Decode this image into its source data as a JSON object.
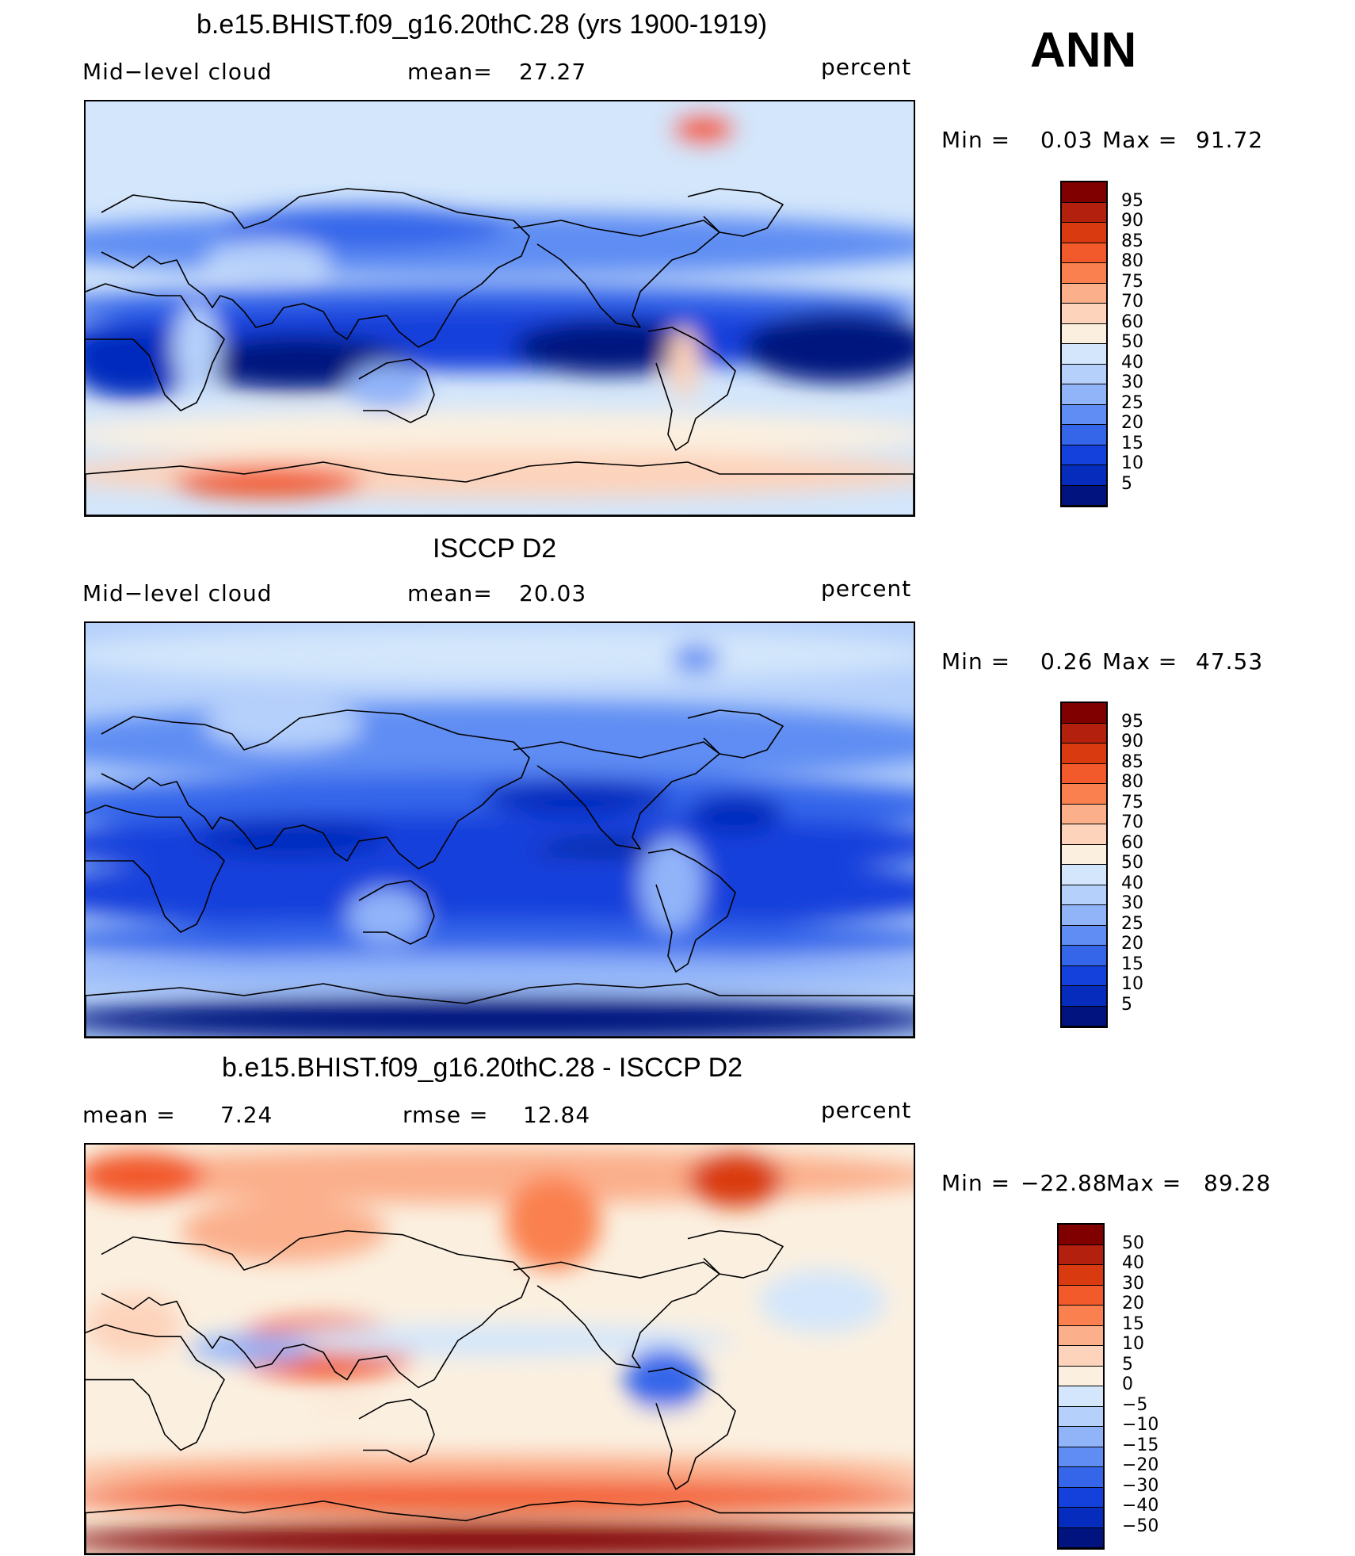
{
  "season": "ANN",
  "units": "percent",
  "panels": [
    {
      "title": "b.e15.BHIST.f09_g16.20thC.28 (yrs 1900-1919)",
      "left_text": "Mid−level cloud",
      "mid_key": "mean=",
      "mid_val": "27.27",
      "right_text": "percent",
      "min_label": "Min  =",
      "min_val": "0.03",
      "max_label": "Max  =",
      "max_val": "91.72",
      "scale": "abs",
      "field": "model",
      "colorbar": {
        "colors": [
          "#800000",
          "#b3200d",
          "#d93a10",
          "#f2592b",
          "#fa814f",
          "#fbaf8b",
          "#fdd3bb",
          "#fbf0e0",
          "#d3e6fb",
          "#b5d0fb",
          "#91b4f9",
          "#5f8df3",
          "#3566ea",
          "#1441db",
          "#052cbd",
          "#00137f"
        ],
        "labels": [
          "95",
          "90",
          "85",
          "80",
          "75",
          "70",
          "60",
          "50",
          "40",
          "30",
          "25",
          "20",
          "15",
          "10",
          "5"
        ]
      }
    },
    {
      "title": "ISCCP D2",
      "left_text": "Mid−level cloud",
      "mid_key": "mean=",
      "mid_val": "20.03",
      "right_text": "percent",
      "min_label": "Min  =",
      "min_val": "0.26",
      "max_label": "Max  =",
      "max_val": "47.53",
      "scale": "abs",
      "field": "obs",
      "colorbar": {
        "colors": [
          "#800000",
          "#b3200d",
          "#d93a10",
          "#f2592b",
          "#fa814f",
          "#fbaf8b",
          "#fdd3bb",
          "#fbf0e0",
          "#d3e6fb",
          "#b5d0fb",
          "#91b4f9",
          "#5f8df3",
          "#3566ea",
          "#1441db",
          "#052cbd",
          "#00137f"
        ],
        "labels": [
          "95",
          "90",
          "85",
          "80",
          "75",
          "70",
          "60",
          "50",
          "40",
          "30",
          "25",
          "20",
          "15",
          "10",
          "5"
        ]
      }
    },
    {
      "title": "b.e15.BHIST.f09_g16.20thC.28 - ISCCP D2",
      "left_text": "mean =",
      "left_val": "7.24",
      "mid_key": "rmse  =",
      "mid_val": "12.84",
      "right_text": "percent",
      "min_label": "Min  =",
      "min_val": "−22.88",
      "max_label": "Max  =",
      "max_val": "89.28",
      "scale": "diff",
      "field": "diff",
      "colorbar": {
        "colors": [
          "#800000",
          "#b3200d",
          "#d93a10",
          "#f2592b",
          "#fa814f",
          "#fbaf8b",
          "#fdd3bb",
          "#fbf0e0",
          "#d3e6fb",
          "#b5d0fb",
          "#91b4f9",
          "#5f8df3",
          "#3566ea",
          "#1441db",
          "#052cbd",
          "#00137f"
        ],
        "labels": [
          "50",
          "40",
          "30",
          "20",
          "15",
          "10",
          "5",
          "0",
          "−5",
          "−10",
          "−15",
          "−20",
          "−30",
          "−40",
          "−50"
        ]
      }
    }
  ],
  "colors": {
    "abs": [
      "#00137f",
      "#052cbd",
      "#1441db",
      "#3566ea",
      "#5f8df3",
      "#91b4f9",
      "#b5d0fb",
      "#d3e6fb",
      "#fbf0e0",
      "#fdd3bb",
      "#fbaf8b",
      "#fa814f",
      "#f2592b",
      "#d93a10",
      "#b3200d",
      "#800000"
    ],
    "diff": [
      "#00137f",
      "#052cbd",
      "#1441db",
      "#3566ea",
      "#5f8df3",
      "#91b4f9",
      "#b5d0fb",
      "#d3e6fb",
      "#fbf0e0",
      "#fdd3bb",
      "#fbaf8b",
      "#fa814f",
      "#f2592b",
      "#d93a10",
      "#b3200d",
      "#800000"
    ]
  }
}
